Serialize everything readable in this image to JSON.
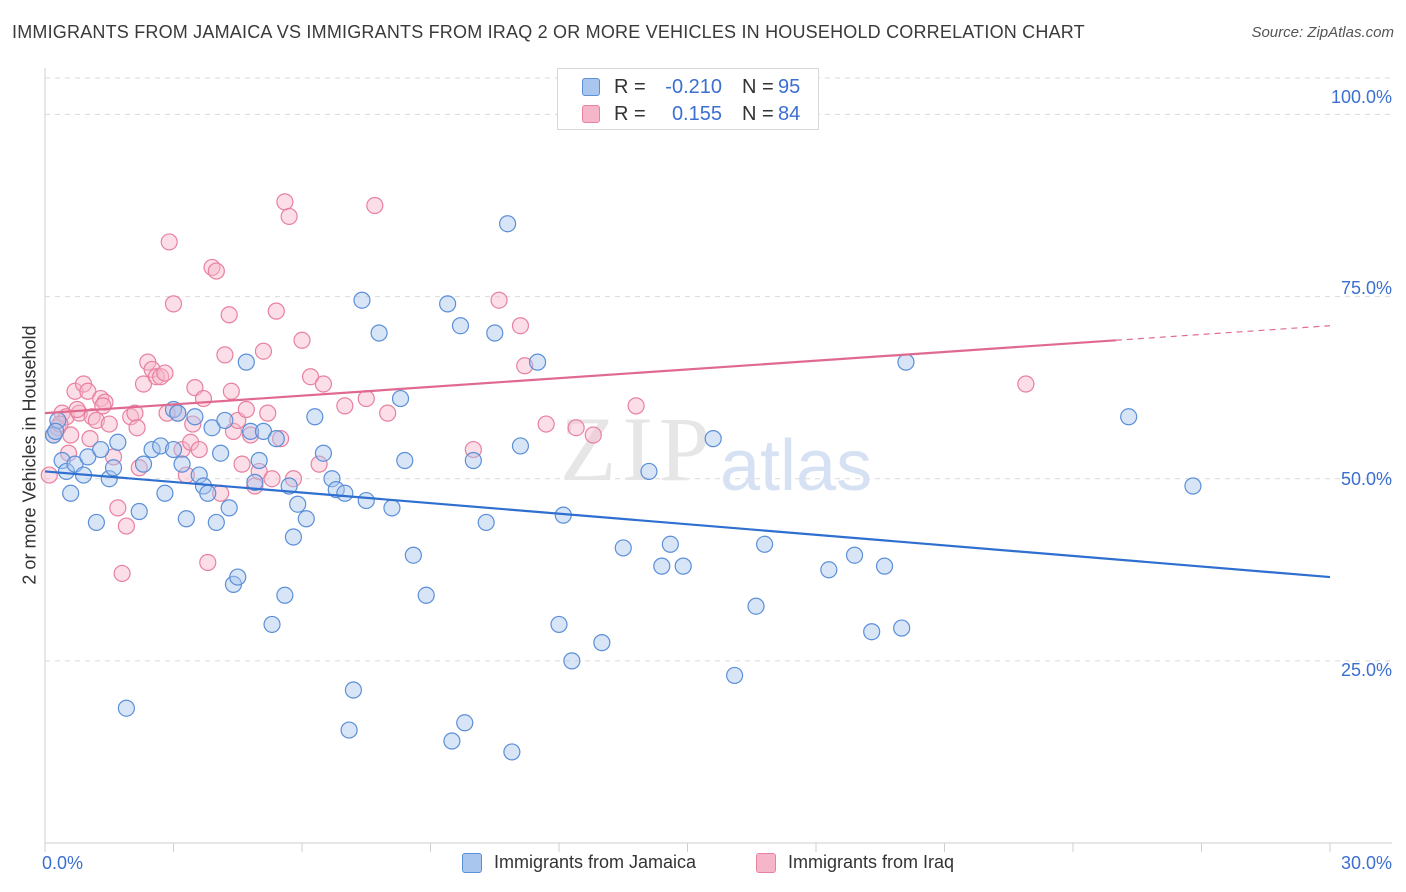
{
  "title": "IMMIGRANTS FROM JAMAICA VS IMMIGRANTS FROM IRAQ 2 OR MORE VEHICLES IN HOUSEHOLD CORRELATION CHART",
  "source": "Source: ZipAtlas.com",
  "watermark": {
    "zip": "ZIP",
    "atlas": "atlas"
  },
  "legend": {
    "jamaica": {
      "r_label": "R =",
      "r_value": "-0.210",
      "n_label": "N =",
      "n_value": "95"
    },
    "iraq": {
      "r_label": "R =",
      "r_value": "0.155",
      "n_label": "N =",
      "n_value": "84"
    }
  },
  "colors": {
    "jamaica_fill": "#a9c6ee",
    "jamaica_stroke": "#5b8fd8",
    "jamaica_line": "#2f6fcf",
    "iraq_fill": "#f6b6c9",
    "iraq_stroke": "#e8819f",
    "iraq_line": "#e0698f",
    "tick_text": "#3b6fd1",
    "grid": "#d9d9d9"
  },
  "chart_data": {
    "type": "scatter",
    "title": "IMMIGRANTS FROM JAMAICA VS IMMIGRANTS FROM IRAQ 2 OR MORE VEHICLES IN HOUSEHOLD CORRELATION CHART",
    "xlabel": "",
    "ylabel": "2 or more Vehicles in Household",
    "xlim": [
      0,
      30
    ],
    "ylim": [
      0,
      105
    ],
    "x_tick_labels": [
      "0.0%",
      "30.0%"
    ],
    "y_ticks": [
      25,
      50,
      75,
      100
    ],
    "y_tick_labels": [
      "25.0%",
      "50.0%",
      "75.0%",
      "100.0%"
    ],
    "grid": true,
    "legend_position": "top-center",
    "series": [
      {
        "name": "Immigrants from Jamaica",
        "trend": {
          "x": [
            0,
            30
          ],
          "y": [
            51.0,
            36.5
          ]
        },
        "points": [
          [
            0.2,
            56.0
          ],
          [
            0.3,
            58.0
          ],
          [
            0.4,
            52.5
          ],
          [
            0.5,
            51.0
          ],
          [
            0.6,
            48.0
          ],
          [
            0.7,
            52.0
          ],
          [
            0.9,
            50.5
          ],
          [
            1.0,
            53.0
          ],
          [
            1.2,
            44.0
          ],
          [
            1.3,
            54.0
          ],
          [
            1.5,
            50.0
          ],
          [
            1.6,
            51.5
          ],
          [
            1.7,
            55.0
          ],
          [
            1.9,
            18.5
          ],
          [
            2.2,
            45.5
          ],
          [
            2.3,
            52.0
          ],
          [
            2.5,
            54.0
          ],
          [
            2.7,
            54.5
          ],
          [
            2.8,
            48.0
          ],
          [
            3.0,
            54.0
          ],
          [
            3.0,
            59.5
          ],
          [
            3.1,
            59.0
          ],
          [
            3.2,
            52.0
          ],
          [
            3.3,
            44.5
          ],
          [
            3.5,
            58.5
          ],
          [
            3.6,
            50.5
          ],
          [
            3.7,
            49.0
          ],
          [
            3.8,
            48.0
          ],
          [
            3.9,
            57.0
          ],
          [
            4.0,
            44.0
          ],
          [
            4.1,
            53.5
          ],
          [
            4.2,
            58.0
          ],
          [
            4.3,
            46.0
          ],
          [
            4.4,
            35.5
          ],
          [
            4.5,
            36.5
          ],
          [
            4.7,
            66.0
          ],
          [
            4.8,
            56.5
          ],
          [
            4.9,
            49.5
          ],
          [
            5.0,
            52.5
          ],
          [
            5.1,
            56.5
          ],
          [
            5.3,
            30.0
          ],
          [
            5.4,
            55.5
          ],
          [
            5.6,
            34.0
          ],
          [
            5.7,
            49.0
          ],
          [
            5.8,
            42.0
          ],
          [
            5.9,
            46.5
          ],
          [
            6.1,
            44.5
          ],
          [
            6.3,
            58.5
          ],
          [
            6.5,
            53.5
          ],
          [
            6.7,
            50.0
          ],
          [
            6.8,
            48.5
          ],
          [
            7.0,
            48.0
          ],
          [
            7.1,
            15.5
          ],
          [
            7.2,
            21.0
          ],
          [
            7.4,
            74.5
          ],
          [
            7.5,
            47.0
          ],
          [
            7.8,
            70.0
          ],
          [
            8.1,
            46.0
          ],
          [
            8.3,
            61.0
          ],
          [
            8.4,
            52.5
          ],
          [
            8.6,
            39.5
          ],
          [
            8.9,
            34.0
          ],
          [
            9.4,
            74.0
          ],
          [
            9.5,
            14.0
          ],
          [
            9.7,
            71.0
          ],
          [
            9.8,
            16.5
          ],
          [
            10.0,
            52.5
          ],
          [
            10.3,
            44.0
          ],
          [
            10.5,
            70.0
          ],
          [
            10.8,
            85.0
          ],
          [
            10.9,
            12.5
          ],
          [
            11.1,
            54.5
          ],
          [
            11.5,
            66.0
          ],
          [
            12.0,
            30.0
          ],
          [
            12.1,
            45.0
          ],
          [
            12.3,
            25.0
          ],
          [
            13.0,
            27.5
          ],
          [
            13.5,
            40.5
          ],
          [
            14.1,
            51.0
          ],
          [
            14.4,
            38.0
          ],
          [
            14.6,
            41.0
          ],
          [
            14.9,
            38.0
          ],
          [
            15.6,
            55.5
          ],
          [
            16.1,
            23.0
          ],
          [
            16.6,
            32.5
          ],
          [
            16.8,
            41.0
          ],
          [
            18.3,
            37.5
          ],
          [
            18.9,
            39.5
          ],
          [
            19.3,
            29.0
          ],
          [
            19.6,
            38.0
          ],
          [
            20.0,
            29.5
          ],
          [
            20.1,
            66.0
          ],
          [
            25.3,
            58.5
          ],
          [
            26.8,
            49.0
          ],
          [
            0.25,
            56.5
          ]
        ]
      },
      {
        "name": "Immigrants from Iraq",
        "trend": {
          "x": [
            0,
            25
          ],
          "y": [
            59.0,
            69.0
          ]
        },
        "trend_dashed": {
          "x": [
            25,
            30
          ],
          "y": [
            69.0,
            71.0
          ]
        },
        "points": [
          [
            0.1,
            50.5
          ],
          [
            0.2,
            56.0
          ],
          [
            0.3,
            57.0
          ],
          [
            0.4,
            59.0
          ],
          [
            0.5,
            58.5
          ],
          [
            0.6,
            56.0
          ],
          [
            0.7,
            62.0
          ],
          [
            0.8,
            59.0
          ],
          [
            0.9,
            63.0
          ],
          [
            1.0,
            62.0
          ],
          [
            1.1,
            58.5
          ],
          [
            1.2,
            58.0
          ],
          [
            1.3,
            61.0
          ],
          [
            1.4,
            60.5
          ],
          [
            1.5,
            57.5
          ],
          [
            1.6,
            53.0
          ],
          [
            1.7,
            46.0
          ],
          [
            1.8,
            37.0
          ],
          [
            1.9,
            43.5
          ],
          [
            2.0,
            58.5
          ],
          [
            2.1,
            59.0
          ],
          [
            2.2,
            51.5
          ],
          [
            2.3,
            63.0
          ],
          [
            2.4,
            66.0
          ],
          [
            2.5,
            65.0
          ],
          [
            2.6,
            64.0
          ],
          [
            2.7,
            64.0
          ],
          [
            2.8,
            64.5
          ],
          [
            2.9,
            82.5
          ],
          [
            3.0,
            74.0
          ],
          [
            3.1,
            59.0
          ],
          [
            3.2,
            54.0
          ],
          [
            3.3,
            50.5
          ],
          [
            3.4,
            55.0
          ],
          [
            3.5,
            62.5
          ],
          [
            3.6,
            54.0
          ],
          [
            3.7,
            61.0
          ],
          [
            3.8,
            38.5
          ],
          [
            3.9,
            79.0
          ],
          [
            4.0,
            78.5
          ],
          [
            4.1,
            48.0
          ],
          [
            4.2,
            67.0
          ],
          [
            4.3,
            72.5
          ],
          [
            4.4,
            56.5
          ],
          [
            4.5,
            58.0
          ],
          [
            4.6,
            52.0
          ],
          [
            4.7,
            59.5
          ],
          [
            4.8,
            56.0
          ],
          [
            4.9,
            49.0
          ],
          [
            5.0,
            51.0
          ],
          [
            5.1,
            67.5
          ],
          [
            5.2,
            59.0
          ],
          [
            5.3,
            50.0
          ],
          [
            5.4,
            73.0
          ],
          [
            5.5,
            55.5
          ],
          [
            5.6,
            88.0
          ],
          [
            5.7,
            86.0
          ],
          [
            5.8,
            50.0
          ],
          [
            6.0,
            69.0
          ],
          [
            6.2,
            64.0
          ],
          [
            6.4,
            52.0
          ],
          [
            6.5,
            63.0
          ],
          [
            7.0,
            60.0
          ],
          [
            7.5,
            61.0
          ],
          [
            7.7,
            87.5
          ],
          [
            8.0,
            59.0
          ],
          [
            10.0,
            54.0
          ],
          [
            10.6,
            74.5
          ],
          [
            11.1,
            71.0
          ],
          [
            11.2,
            65.5
          ],
          [
            11.7,
            57.5
          ],
          [
            12.4,
            57.0
          ],
          [
            12.8,
            56.0
          ],
          [
            13.8,
            60.0
          ],
          [
            22.9,
            63.0
          ],
          [
            0.35,
            57.5
          ],
          [
            0.55,
            53.5
          ],
          [
            0.75,
            59.5
          ],
          [
            1.05,
            55.5
          ],
          [
            1.35,
            60.0
          ],
          [
            2.15,
            57.0
          ],
          [
            2.85,
            59.0
          ],
          [
            3.45,
            57.5
          ],
          [
            4.35,
            62.0
          ]
        ]
      }
    ]
  },
  "bottom_legend": {
    "jamaica": "Immigrants from Jamaica",
    "iraq": "Immigrants from Iraq"
  }
}
